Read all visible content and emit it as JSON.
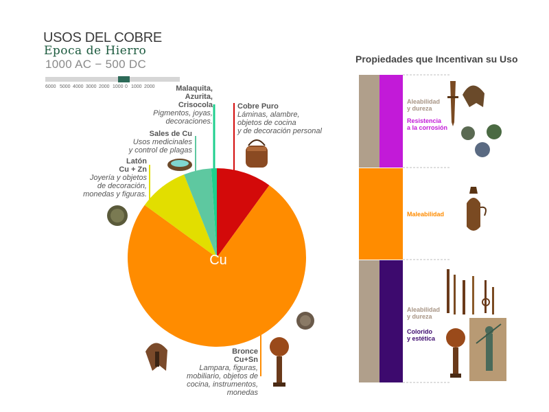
{
  "header": {
    "title": "USOS DEL COBRE",
    "subtitle": "Epoca de Hierro",
    "period": "1000 AC − 500 DC"
  },
  "timeline": {
    "ticks": [
      "6000",
      "5000",
      "4000",
      "3000",
      "2000",
      "1000",
      "0",
      "1000",
      "2000"
    ],
    "highlight": "1000 AC − 500 DC",
    "marker_color": "#2c6a58"
  },
  "chart_data": {
    "type": "pie",
    "center_label": "Cu",
    "slices": [
      {
        "heading": [
          "Cobre Puro"
        ],
        "description": [
          "Láminas, alambre,",
          "objetos de cocina",
          "y de decoración personal"
        ],
        "value": 10,
        "color": "#d30a0a"
      },
      {
        "heading": [
          "Bronce",
          "Cu+Sn"
        ],
        "description": [
          "Lampara, figuras,",
          "mobiliario, objetos de",
          "cocina, instrumentos,",
          "monedas"
        ],
        "value": 75,
        "color": "#ff8c00"
      },
      {
        "heading": [
          "Latón",
          "Cu + Zn"
        ],
        "description": [
          "Joyería y objetos",
          "de decoración,",
          "monedas y figuras."
        ],
        "value": 9,
        "color": "#e2de00"
      },
      {
        "heading": [
          "Sales de Cu"
        ],
        "description": [
          "Usos medicinales",
          "y control de plagas"
        ],
        "value": 5,
        "color": "#5ec8a0"
      },
      {
        "heading": [
          "Malaquita,",
          "Azurita,",
          "Crisocola"
        ],
        "description": [
          "Pigmentos, joyas,",
          "decoraciones."
        ],
        "value": 1,
        "color": "#1fcf8e"
      }
    ]
  },
  "properties": {
    "title": "Propiedades que Incentivan su Uso",
    "groups": [
      {
        "labels": [
          {
            "text": [
              "Aleabilidad",
              "y dureza"
            ],
            "color": "#a89585"
          },
          {
            "text": [
              "Resistencia",
              "a la corrosión"
            ],
            "color": "#c21ad8"
          }
        ],
        "bar_colors": [
          "#b09f8b",
          "#c21ad8"
        ]
      },
      {
        "labels": [
          {
            "text": [
              "Maleabilidad"
            ],
            "color": "#ff8c00"
          }
        ],
        "bar_colors": [
          "#ff8c00"
        ]
      },
      {
        "labels": [
          {
            "text": [
              "Aleabilidad",
              "y dureza"
            ],
            "color": "#a89585"
          },
          {
            "text": [
              "Colorido",
              "y estética"
            ],
            "color": "#3d0a6e"
          }
        ],
        "bar_colors": [
          "#b09f8b",
          "#3d0a6e"
        ]
      }
    ]
  }
}
